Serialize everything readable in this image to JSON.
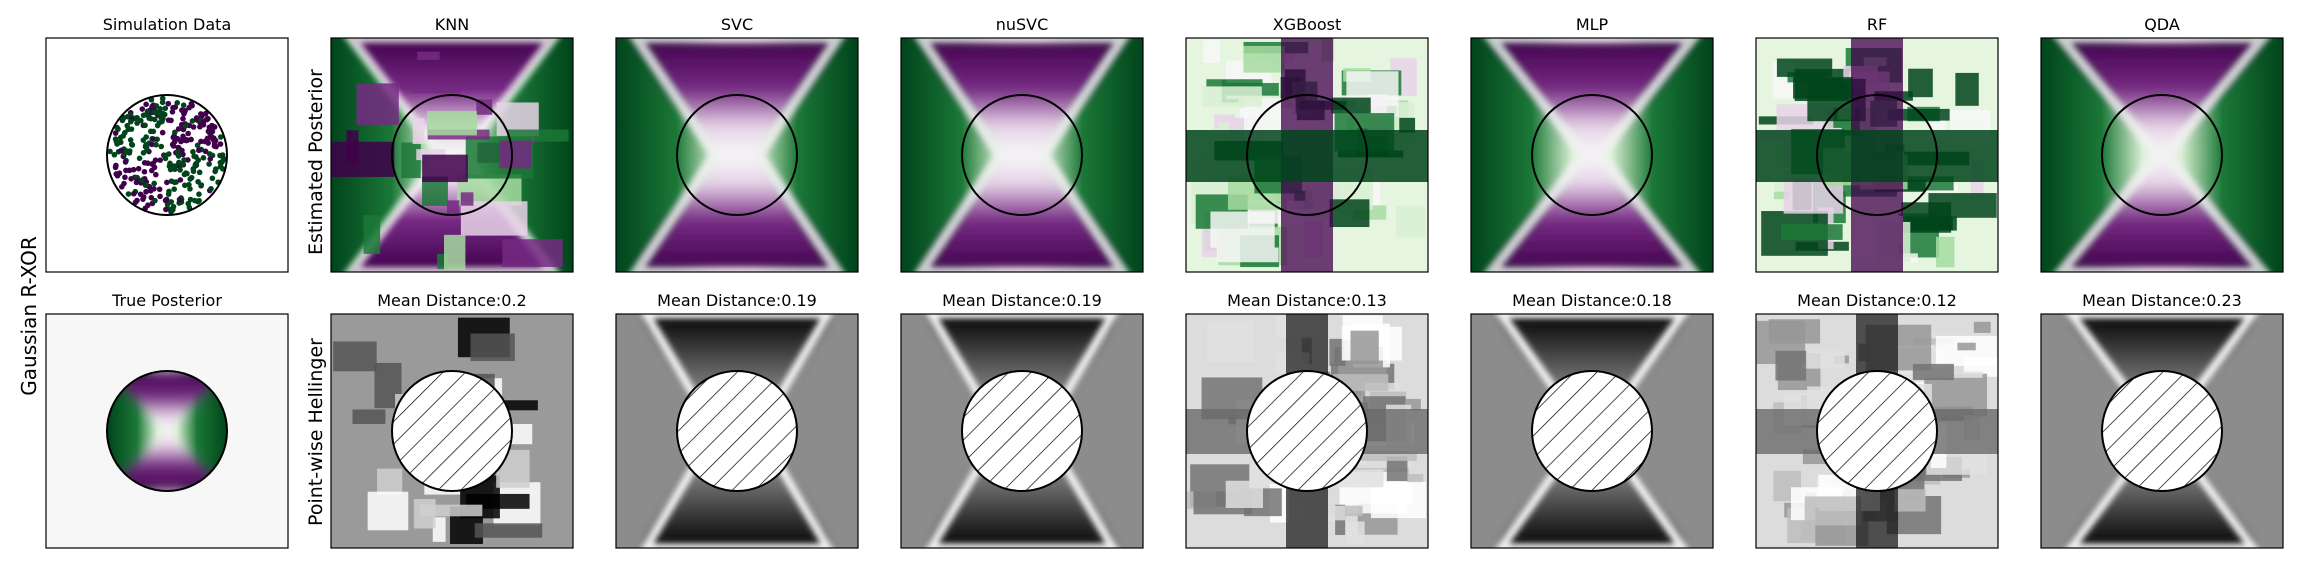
{
  "figure": {
    "row_label": "Gaussian R-XOR",
    "top_ylabel": "Estimated Posterior",
    "bottom_ylabel": "Point-wise Hellinger"
  },
  "chart_data": [
    {
      "type": "scatter",
      "panel": "simulation",
      "title": "Simulation Data",
      "description": "Points inside unit circle, two classes (green / purple)"
    },
    {
      "type": "heatmap",
      "panel": "true-posterior",
      "title": "True Posterior"
    },
    {
      "type": "heatmap",
      "model": "KNN",
      "title": "KNN",
      "mean_distance_label": "Mean Distance:0.2",
      "mean_distance": 0.2
    },
    {
      "type": "heatmap",
      "model": "SVC",
      "title": "SVC",
      "mean_distance_label": "Mean Distance:0.19",
      "mean_distance": 0.19
    },
    {
      "type": "heatmap",
      "model": "nuSVC",
      "title": "nuSVC",
      "mean_distance_label": "Mean Distance:0.19",
      "mean_distance": 0.19
    },
    {
      "type": "heatmap",
      "model": "XGBoost",
      "title": "XGBoost",
      "mean_distance_label": "Mean Distance:0.13",
      "mean_distance": 0.13
    },
    {
      "type": "heatmap",
      "model": "MLP",
      "title": "MLP",
      "mean_distance_label": "Mean Distance:0.18",
      "mean_distance": 0.18
    },
    {
      "type": "heatmap",
      "model": "RF",
      "title": "RF",
      "mean_distance_label": "Mean Distance:0.12",
      "mean_distance": 0.12
    },
    {
      "type": "heatmap",
      "model": "QDA",
      "title": "QDA",
      "mean_distance_label": "Mean Distance:0.23",
      "mean_distance": 0.23
    }
  ],
  "colors": {
    "class0": "#00441b",
    "class1": "#40004b",
    "green_mid": "#5aae61",
    "purple_mid": "#9970ab",
    "neutral": "#f7f7f7"
  }
}
